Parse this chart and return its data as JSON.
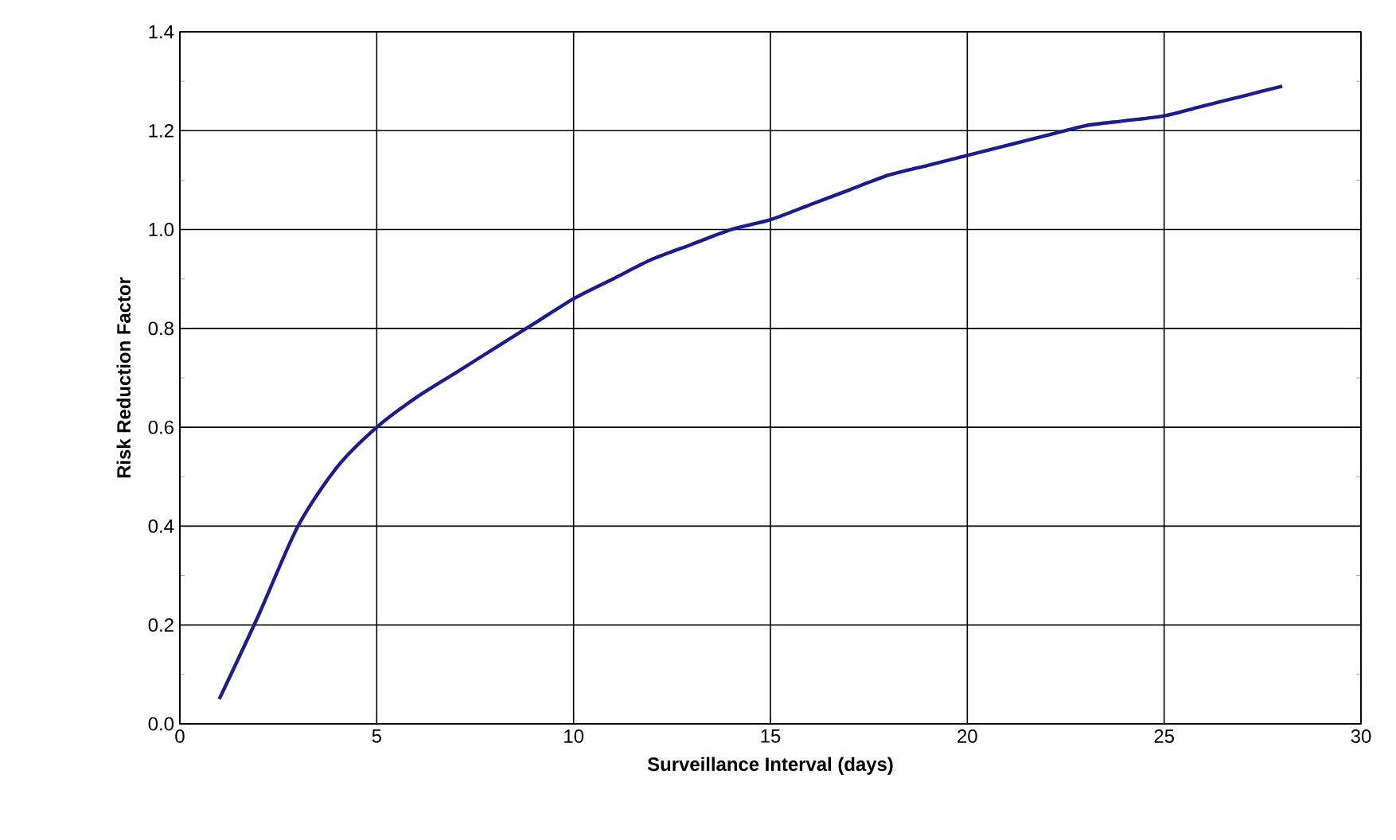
{
  "chart_data": {
    "type": "line",
    "xlabel": "Surveillance Interval (days)",
    "ylabel": "Risk Reduction Factor",
    "series": [
      {
        "color": "#1c1c8e",
        "x": [
          1,
          2,
          3,
          4,
          5,
          6,
          7,
          8,
          9,
          10,
          11,
          12,
          13,
          14,
          15,
          16,
          17,
          18,
          19,
          20,
          21,
          22,
          23,
          24,
          25,
          26,
          27,
          28
        ],
        "values": [
          0.05,
          0.22,
          0.4,
          0.52,
          0.6,
          0.66,
          0.71,
          0.76,
          0.81,
          0.86,
          0.9,
          0.94,
          0.97,
          1.0,
          1.02,
          1.05,
          1.08,
          1.11,
          1.13,
          1.15,
          1.17,
          1.19,
          1.21,
          1.22,
          1.23,
          1.25,
          1.27,
          1.29
        ]
      }
    ],
    "xlim": [
      0,
      30
    ],
    "ylim": [
      0,
      1.4
    ],
    "xticks": [
      0,
      5,
      10,
      15,
      20,
      25,
      30
    ],
    "yticks": [
      {
        "value": 0,
        "label": "0.0"
      },
      {
        "value": 0.2,
        "label": "0.2"
      },
      {
        "value": 0.4,
        "label": "0.4"
      },
      {
        "value": 0.6,
        "label": "0.6"
      },
      {
        "value": 0.8,
        "label": "0.8"
      },
      {
        "value": 1.0,
        "label": "1.0"
      },
      {
        "value": 1.2,
        "label": "1.2"
      },
      {
        "value": 1.4,
        "label": "1.4"
      }
    ],
    "grid": true,
    "marker": "none",
    "line_style": "solid"
  }
}
